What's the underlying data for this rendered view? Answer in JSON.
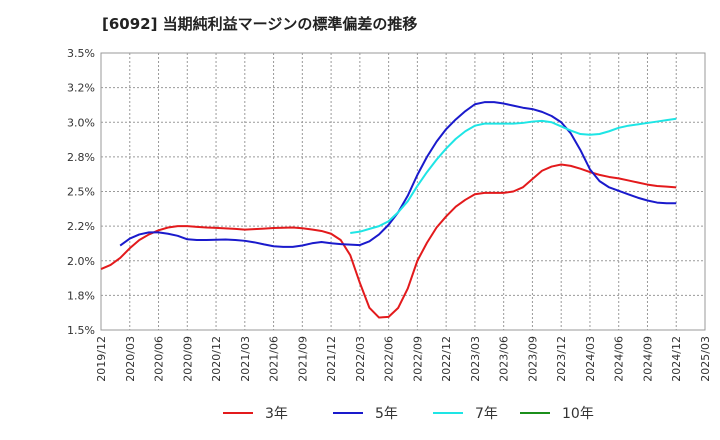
{
  "chart_data": {
    "type": "line",
    "title": "[6092]  当期純利益マージンの標準偏差の推移",
    "xlabel": "",
    "ylabel": "",
    "ylim": [
      1.5,
      3.5
    ],
    "yticks": [
      1.5,
      1.75,
      2.0,
      2.25,
      2.5,
      2.75,
      3.0,
      3.25,
      3.5
    ],
    "ytick_labels": [
      "1.5%",
      "1.8%",
      "2.0%",
      "2.2%",
      "2.5%",
      "2.8%",
      "3.0%",
      "3.2%",
      "3.5%"
    ],
    "x_range": [
      "2019/12",
      "2025/03"
    ],
    "xtick_labels": [
      "2019/12",
      "2020/03",
      "2020/06",
      "2020/09",
      "2020/12",
      "2021/03",
      "2021/06",
      "2021/09",
      "2021/12",
      "2022/03",
      "2022/06",
      "2022/09",
      "2022/12",
      "2023/03",
      "2023/06",
      "2023/09",
      "2023/12",
      "2024/03",
      "2024/06",
      "2024/09",
      "2024/12",
      "2025/03"
    ],
    "grid": true,
    "legend_position": "bottom",
    "series": [
      {
        "name": "3年",
        "color": "#e31a1c",
        "points": [
          [
            "2019/12",
            1.94
          ],
          [
            "2020/01",
            1.97
          ],
          [
            "2020/02",
            2.02
          ],
          [
            "2020/03",
            2.09
          ],
          [
            "2020/04",
            2.15
          ],
          [
            "2020/05",
            2.19
          ],
          [
            "2020/06",
            2.22
          ],
          [
            "2020/07",
            2.24
          ],
          [
            "2020/08",
            2.25
          ],
          [
            "2020/09",
            2.25
          ],
          [
            "2020/10",
            2.245
          ],
          [
            "2020/11",
            2.24
          ],
          [
            "2020/12",
            2.237
          ],
          [
            "2021/01",
            2.234
          ],
          [
            "2021/02",
            2.23
          ],
          [
            "2021/03",
            2.225
          ],
          [
            "2021/04",
            2.228
          ],
          [
            "2021/05",
            2.232
          ],
          [
            "2021/06",
            2.236
          ],
          [
            "2021/07",
            2.238
          ],
          [
            "2021/08",
            2.24
          ],
          [
            "2021/09",
            2.235
          ],
          [
            "2021/10",
            2.226
          ],
          [
            "2021/11",
            2.215
          ],
          [
            "2021/12",
            2.195
          ],
          [
            "2022/01",
            2.15
          ],
          [
            "2022/02",
            2.04
          ],
          [
            "2022/03",
            1.84
          ],
          [
            "2022/04",
            1.66
          ],
          [
            "2022/05",
            1.59
          ],
          [
            "2022/06",
            1.595
          ],
          [
            "2022/07",
            1.66
          ],
          [
            "2022/08",
            1.8
          ],
          [
            "2022/09",
            2.0
          ],
          [
            "2022/10",
            2.13
          ],
          [
            "2022/11",
            2.24
          ],
          [
            "2022/12",
            2.32
          ],
          [
            "2023/01",
            2.39
          ],
          [
            "2023/02",
            2.44
          ],
          [
            "2023/03",
            2.48
          ],
          [
            "2023/04",
            2.49
          ],
          [
            "2023/05",
            2.49
          ],
          [
            "2023/06",
            2.49
          ],
          [
            "2023/07",
            2.5
          ],
          [
            "2023/08",
            2.53
          ],
          [
            "2023/09",
            2.59
          ],
          [
            "2023/10",
            2.65
          ],
          [
            "2023/11",
            2.68
          ],
          [
            "2023/12",
            2.695
          ],
          [
            "2024/01",
            2.685
          ],
          [
            "2024/02",
            2.665
          ],
          [
            "2024/03",
            2.64
          ],
          [
            "2024/04",
            2.62
          ],
          [
            "2024/05",
            2.605
          ],
          [
            "2024/06",
            2.595
          ],
          [
            "2024/07",
            2.58
          ],
          [
            "2024/08",
            2.565
          ],
          [
            "2024/09",
            2.55
          ],
          [
            "2024/10",
            2.54
          ],
          [
            "2024/11",
            2.535
          ],
          [
            "2024/12",
            2.53
          ]
        ]
      },
      {
        "name": "5年",
        "color": "#1a1acc",
        "points": [
          [
            "2020/02",
            2.11
          ],
          [
            "2020/03",
            2.16
          ],
          [
            "2020/04",
            2.19
          ],
          [
            "2020/05",
            2.205
          ],
          [
            "2020/06",
            2.205
          ],
          [
            "2020/07",
            2.195
          ],
          [
            "2020/08",
            2.18
          ],
          [
            "2020/09",
            2.155
          ],
          [
            "2020/10",
            2.15
          ],
          [
            "2020/11",
            2.15
          ],
          [
            "2020/12",
            2.152
          ],
          [
            "2021/01",
            2.153
          ],
          [
            "2021/02",
            2.15
          ],
          [
            "2021/03",
            2.144
          ],
          [
            "2021/04",
            2.133
          ],
          [
            "2021/05",
            2.118
          ],
          [
            "2021/06",
            2.105
          ],
          [
            "2021/07",
            2.1
          ],
          [
            "2021/08",
            2.1
          ],
          [
            "2021/09",
            2.11
          ],
          [
            "2021/10",
            2.126
          ],
          [
            "2021/11",
            2.135
          ],
          [
            "2021/12",
            2.126
          ],
          [
            "2022/01",
            2.12
          ],
          [
            "2022/02",
            2.116
          ],
          [
            "2022/03",
            2.113
          ],
          [
            "2022/04",
            2.14
          ],
          [
            "2022/05",
            2.19
          ],
          [
            "2022/06",
            2.26
          ],
          [
            "2022/07",
            2.35
          ],
          [
            "2022/08",
            2.47
          ],
          [
            "2022/09",
            2.62
          ],
          [
            "2022/10",
            2.75
          ],
          [
            "2022/11",
            2.86
          ],
          [
            "2022/12",
            2.95
          ],
          [
            "2023/01",
            3.02
          ],
          [
            "2023/02",
            3.08
          ],
          [
            "2023/03",
            3.13
          ],
          [
            "2023/04",
            3.145
          ],
          [
            "2023/05",
            3.145
          ],
          [
            "2023/06",
            3.135
          ],
          [
            "2023/07",
            3.12
          ],
          [
            "2023/08",
            3.105
          ],
          [
            "2023/09",
            3.095
          ],
          [
            "2023/10",
            3.075
          ],
          [
            "2023/11",
            3.045
          ],
          [
            "2023/12",
            3.0
          ],
          [
            "2024/01",
            2.92
          ],
          [
            "2024/02",
            2.8
          ],
          [
            "2024/03",
            2.66
          ],
          [
            "2024/04",
            2.575
          ],
          [
            "2024/05",
            2.53
          ],
          [
            "2024/06",
            2.505
          ],
          [
            "2024/07",
            2.48
          ],
          [
            "2024/08",
            2.455
          ],
          [
            "2024/09",
            2.435
          ],
          [
            "2024/10",
            2.42
          ],
          [
            "2024/11",
            2.415
          ],
          [
            "2024/12",
            2.415
          ]
        ]
      },
      {
        "name": "7年",
        "color": "#1ee5e5",
        "points": [
          [
            "2022/02",
            2.2
          ],
          [
            "2022/03",
            2.21
          ],
          [
            "2022/04",
            2.23
          ],
          [
            "2022/05",
            2.25
          ],
          [
            "2022/06",
            2.285
          ],
          [
            "2022/07",
            2.35
          ],
          [
            "2022/08",
            2.43
          ],
          [
            "2022/09",
            2.54
          ],
          [
            "2022/10",
            2.64
          ],
          [
            "2022/11",
            2.73
          ],
          [
            "2022/12",
            2.81
          ],
          [
            "2023/01",
            2.88
          ],
          [
            "2023/02",
            2.935
          ],
          [
            "2023/03",
            2.975
          ],
          [
            "2023/04",
            2.99
          ],
          [
            "2023/05",
            2.99
          ],
          [
            "2023/06",
            2.99
          ],
          [
            "2023/07",
            2.99
          ],
          [
            "2023/08",
            2.995
          ],
          [
            "2023/09",
            3.005
          ],
          [
            "2023/10",
            3.01
          ],
          [
            "2023/11",
            3.0
          ],
          [
            "2023/12",
            2.97
          ],
          [
            "2024/01",
            2.94
          ],
          [
            "2024/02",
            2.915
          ],
          [
            "2024/03",
            2.91
          ],
          [
            "2024/04",
            2.915
          ],
          [
            "2024/05",
            2.935
          ],
          [
            "2024/06",
            2.96
          ],
          [
            "2024/07",
            2.975
          ],
          [
            "2024/08",
            2.985
          ],
          [
            "2024/09",
            2.995
          ],
          [
            "2024/10",
            3.005
          ],
          [
            "2024/11",
            3.015
          ],
          [
            "2024/12",
            3.025
          ]
        ]
      },
      {
        "name": "10年",
        "color": "#1b8f1b",
        "points": []
      }
    ]
  }
}
